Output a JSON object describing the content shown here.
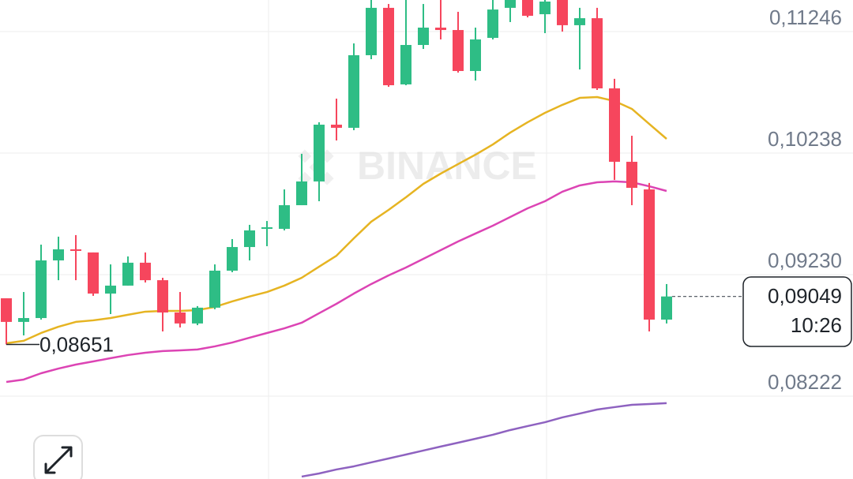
{
  "chart_data": {
    "type": "candlestick",
    "watermark": "BINANCE",
    "categories": [
      null,
      null,
      null,
      null,
      null,
      null,
      null,
      null,
      null,
      null,
      null,
      null,
      null,
      null,
      null,
      null,
      null,
      null,
      null,
      null,
      null,
      null,
      null,
      null,
      null,
      null,
      null,
      null,
      null,
      null,
      null,
      null,
      null,
      null,
      null,
      null,
      null,
      null,
      null
    ],
    "open": [
      0.09034,
      0.08838,
      0.0887,
      0.09348,
      0.0944,
      0.09414,
      0.09073,
      0.09139,
      0.09329,
      0.09184,
      0.08916,
      0.08825,
      0.08956,
      0.09263,
      0.09459,
      0.0961,
      0.0961,
      0.09806,
      0.10003,
      0.10474,
      0.10448,
      0.1105,
      0.11443,
      0.10808,
      0.11135,
      0.11279,
      0.11259,
      0.10919,
      0.11194,
      0.11443,
      0.11508,
      0.1139,
      0.11508,
      0.11299,
      0.11357,
      0.10775,
      0.10166,
      0.09937,
      0.08857
    ],
    "high": [
      0.09034,
      0.09086,
      0.09479,
      0.09545,
      0.09558,
      0.09414,
      0.09315,
      0.09381,
      0.09414,
      0.09204,
      0.09086,
      0.08969,
      0.09315,
      0.09525,
      0.09643,
      0.09675,
      0.09937,
      0.10232,
      0.10494,
      0.1069,
      0.11148,
      0.11508,
      0.11475,
      0.11508,
      0.11475,
      0.11508,
      0.1141,
      0.11279,
      0.11508,
      0.11508,
      0.11508,
      0.11508,
      0.11508,
      0.11443,
      0.11443,
      0.10854,
      0.10382,
      0.0999,
      0.09152
    ],
    "low": [
      0.08651,
      0.08726,
      0.08857,
      0.09184,
      0.09184,
      0.09054,
      0.08903,
      0.09139,
      0.09165,
      0.08759,
      0.08792,
      0.08811,
      0.08943,
      0.0925,
      0.09348,
      0.09466,
      0.09597,
      0.09806,
      0.09839,
      0.10343,
      0.10428,
      0.11017,
      0.10788,
      0.10801,
      0.11102,
      0.11181,
      0.10906,
      0.1084,
      0.11181,
      0.11325,
      0.11364,
      0.11233,
      0.11246,
      0.10932,
      0.10762,
      0.10016,
      0.09806,
      0.08759,
      0.08825
    ],
    "close": [
      0.08838,
      0.0887,
      0.09348,
      0.0944,
      0.09427,
      0.09073,
      0.09139,
      0.09329,
      0.09184,
      0.08916,
      0.08825,
      0.08956,
      0.09263,
      0.09459,
      0.09597,
      0.09623,
      0.09806,
      0.10003,
      0.10474,
      0.10448,
      0.1105,
      0.11443,
      0.10801,
      0.11135,
      0.11279,
      0.11259,
      0.10919,
      0.11181,
      0.11429,
      0.11508,
      0.11377,
      0.11495,
      0.11299,
      0.11357,
      0.10775,
      0.10166,
      0.0995,
      0.08857,
      0.09049
    ],
    "up_color": "#2ebd85",
    "down_color": "#f6465d",
    "lines": [
      {
        "color": "#e6b422",
        "values": [
          0.08661,
          0.08681,
          0.08746,
          0.08798,
          0.08838,
          0.08851,
          0.0887,
          0.08897,
          0.08923,
          0.08929,
          0.08929,
          0.08936,
          0.08962,
          0.09008,
          0.09049,
          0.09086,
          0.09139,
          0.09204,
          0.09296,
          0.09387,
          0.09531,
          0.09669,
          0.09767,
          0.09872,
          0.09983,
          0.10068,
          0.10147,
          0.10225,
          0.1031,
          0.10408,
          0.10494,
          0.10572,
          0.10638,
          0.10696,
          0.10703,
          0.1067,
          0.10605,
          0.1048,
          0.10356
        ]
      },
      {
        "color": "#dc44b4",
        "values": [
          0.0834,
          0.0836,
          0.08412,
          0.08451,
          0.08484,
          0.0851,
          0.08537,
          0.08563,
          0.08582,
          0.08596,
          0.08602,
          0.08609,
          0.08635,
          0.08667,
          0.08707,
          0.08746,
          0.08785,
          0.08831,
          0.0891,
          0.08988,
          0.09073,
          0.09152,
          0.09224,
          0.09289,
          0.09361,
          0.09433,
          0.09505,
          0.09571,
          0.09636,
          0.09708,
          0.0978,
          0.09839,
          0.09918,
          0.0997,
          0.09996,
          0.10003,
          0.09996,
          0.09963,
          0.09924
        ]
      },
      {
        "color": "#8e62c0",
        "values": [
          null,
          null,
          null,
          null,
          null,
          null,
          null,
          null,
          null,
          null,
          null,
          null,
          null,
          null,
          null,
          null,
          null,
          0.07555,
          0.07581,
          0.07614,
          0.0764,
          0.07673,
          0.07705,
          0.07738,
          0.07771,
          0.07804,
          0.07836,
          0.07869,
          0.07902,
          0.07941,
          0.07974,
          0.08006,
          0.08046,
          0.08078,
          0.08111,
          0.08131,
          0.0815,
          0.08157,
          0.08164
        ]
      }
    ],
    "ylim": [
      0.07535,
      0.11508
    ],
    "yticks": [
      {
        "value": 0.11246,
        "label": "0,11246"
      },
      {
        "value": 0.10238,
        "label": "0,10238"
      },
      {
        "value": 0.0923,
        "label": "0,09230"
      },
      {
        "value": 0.08222,
        "label": "0,08222"
      }
    ],
    "grid": true,
    "last_price": {
      "value": 0.09049,
      "label": "0,09049"
    },
    "countdown": "10:26",
    "low_marker": {
      "value": 0.08651,
      "label": "0,08651"
    }
  }
}
